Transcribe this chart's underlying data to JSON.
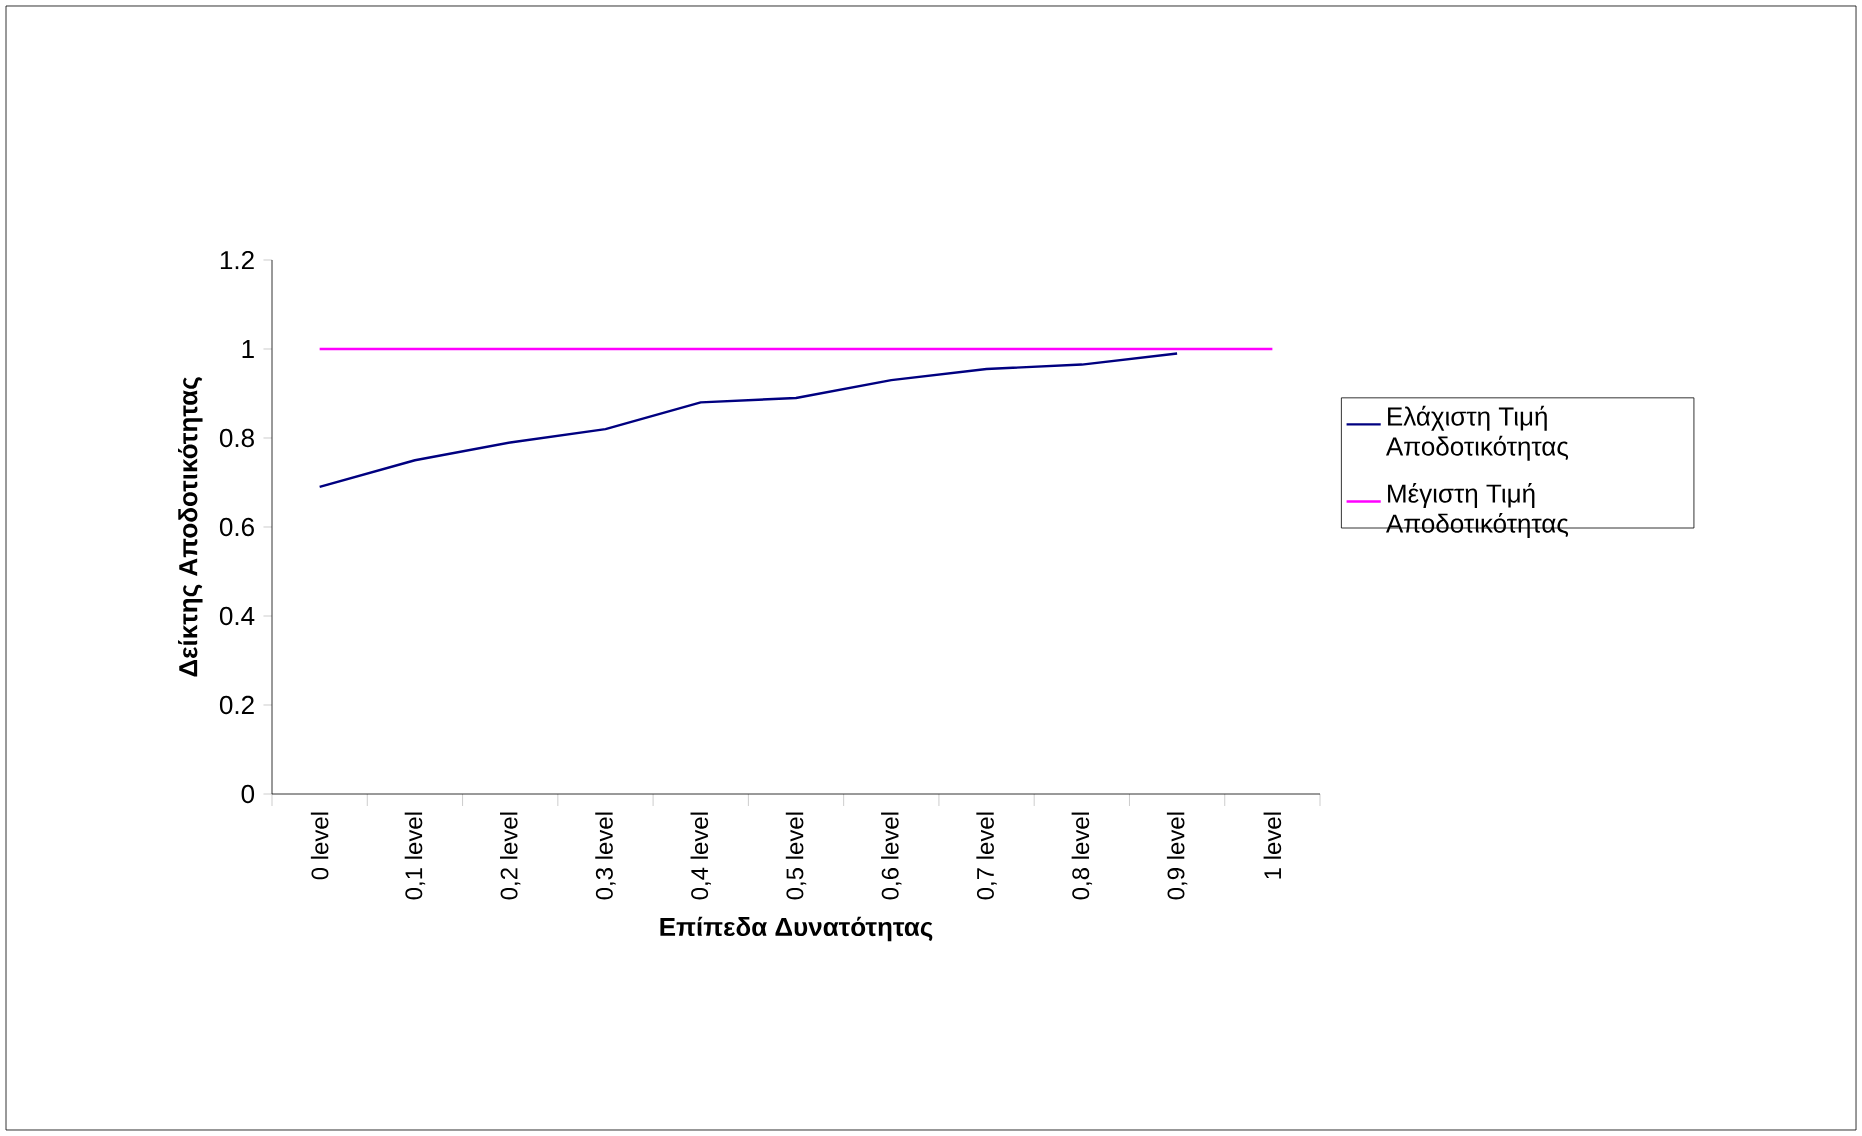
{
  "chart_data": {
    "type": "line",
    "xlabel": "Επίπεδα Δυνατότητας",
    "ylabel": "Δείκτης Αποδοτικότητας",
    "categories": [
      "0 level",
      "0,1 level",
      "0,2 level",
      "0,3 level",
      "0,4 level",
      "0,5 level",
      "0,6 level",
      "0,7 level",
      "0,8 level",
      "0,9 level",
      "1 level"
    ],
    "series": [
      {
        "name": "Ελάχιστη Τιμή Αποδοτικότητας",
        "color": "#000080",
        "values": [
          0.69,
          0.75,
          0.79,
          0.82,
          0.88,
          0.89,
          0.93,
          0.955,
          0.965,
          0.99,
          null
        ]
      },
      {
        "name": "Μέγιστη Τιμή Αποδοτικότητας",
        "color": "#ff00ff",
        "values": [
          1,
          1,
          1,
          1,
          1,
          1,
          1,
          1,
          1,
          1,
          1
        ]
      }
    ],
    "ylim": [
      0,
      1.2
    ],
    "yticks": [
      0,
      0.2,
      0.4,
      0.6,
      0.8,
      1,
      1.2
    ],
    "legend": "right",
    "marker": "none",
    "line_style": "solid"
  }
}
